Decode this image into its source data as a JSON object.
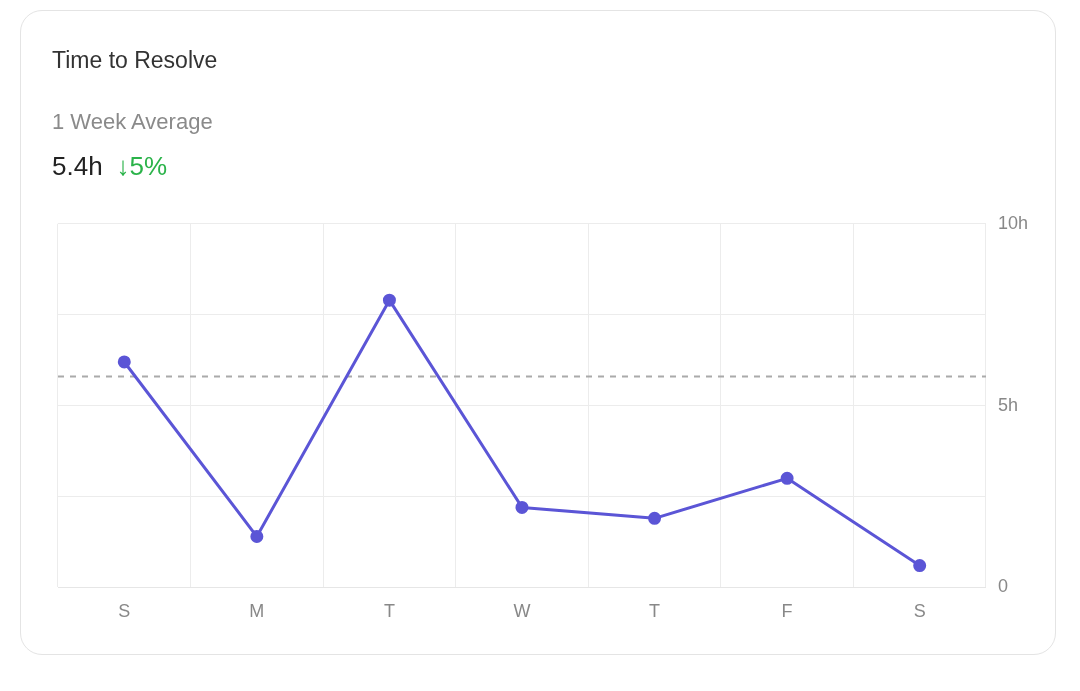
{
  "chart_data": {
    "type": "line",
    "title": "Time to Resolve",
    "subtitle": "1 Week Average",
    "annotations": [
      "5.4h",
      "↓5%"
    ],
    "categories": [
      "S",
      "M",
      "T",
      "W",
      "T",
      "F",
      "S"
    ],
    "ylim": [
      0,
      10
    ],
    "yticks": [
      {
        "value": 0,
        "label": "0"
      },
      {
        "value": 2.5,
        "label": null
      },
      {
        "value": 5,
        "label": "5h"
      },
      {
        "value": 7.5,
        "label": null
      },
      {
        "value": 10,
        "label": "10h"
      }
    ],
    "series": [
      {
        "color": "#5b55d6",
        "values": [
          6.2,
          1.4,
          7.9,
          2.2,
          1.9,
          3.0,
          0.6
        ]
      }
    ],
    "ref_lines": [
      {
        "axis": "y",
        "value": 5.8,
        "color": "#aaaaaa",
        "line_style": "dashed"
      }
    ],
    "grid": true,
    "marker": "circle",
    "line_style": "solid"
  }
}
